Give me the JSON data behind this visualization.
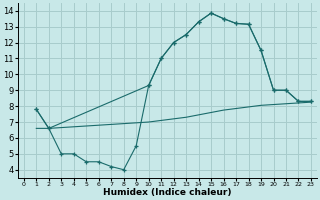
{
  "xlabel": "Humidex (Indice chaleur)",
  "background_color": "#c8e8e8",
  "grid_color": "#a8cccc",
  "line_color": "#1a6b6b",
  "xlim": [
    -0.5,
    23.5
  ],
  "ylim": [
    3.5,
    14.5
  ],
  "xticks": [
    0,
    1,
    2,
    3,
    4,
    5,
    6,
    7,
    8,
    9,
    10,
    11,
    12,
    13,
    14,
    15,
    16,
    17,
    18,
    19,
    20,
    21,
    22,
    23
  ],
  "yticks": [
    4,
    5,
    6,
    7,
    8,
    9,
    10,
    11,
    12,
    13,
    14
  ],
  "line_upper_x": [
    1,
    2,
    10,
    11,
    12,
    13,
    14,
    15,
    16,
    17,
    18,
    19,
    20,
    21,
    22,
    23
  ],
  "line_upper_y": [
    7.8,
    6.6,
    9.3,
    11.0,
    12.0,
    12.5,
    13.3,
    13.85,
    13.5,
    13.2,
    13.15,
    11.5,
    9.0,
    9.0,
    8.3,
    8.3
  ],
  "line_zigzag_x": [
    1,
    2,
    3,
    4,
    5,
    6,
    7,
    8,
    9,
    10,
    11,
    12,
    13,
    14,
    15,
    16,
    17,
    18,
    19,
    20,
    21,
    22,
    23
  ],
  "line_zigzag_y": [
    7.8,
    6.6,
    5.0,
    5.0,
    4.5,
    4.5,
    4.2,
    4.0,
    5.5,
    9.3,
    11.0,
    12.0,
    12.5,
    13.3,
    13.85,
    13.5,
    13.2,
    13.15,
    11.5,
    9.0,
    9.0,
    8.3,
    8.3
  ],
  "line_lower_x": [
    1,
    2,
    3,
    4,
    5,
    6,
    7,
    8,
    9,
    10,
    11,
    12,
    13,
    14,
    15,
    16,
    17,
    18,
    19,
    20,
    21,
    22,
    23
  ],
  "line_lower_y": [
    6.6,
    6.6,
    6.65,
    6.7,
    6.75,
    6.8,
    6.85,
    6.9,
    6.95,
    7.0,
    7.1,
    7.2,
    7.3,
    7.45,
    7.6,
    7.75,
    7.85,
    7.95,
    8.05,
    8.1,
    8.15,
    8.2,
    8.25
  ]
}
